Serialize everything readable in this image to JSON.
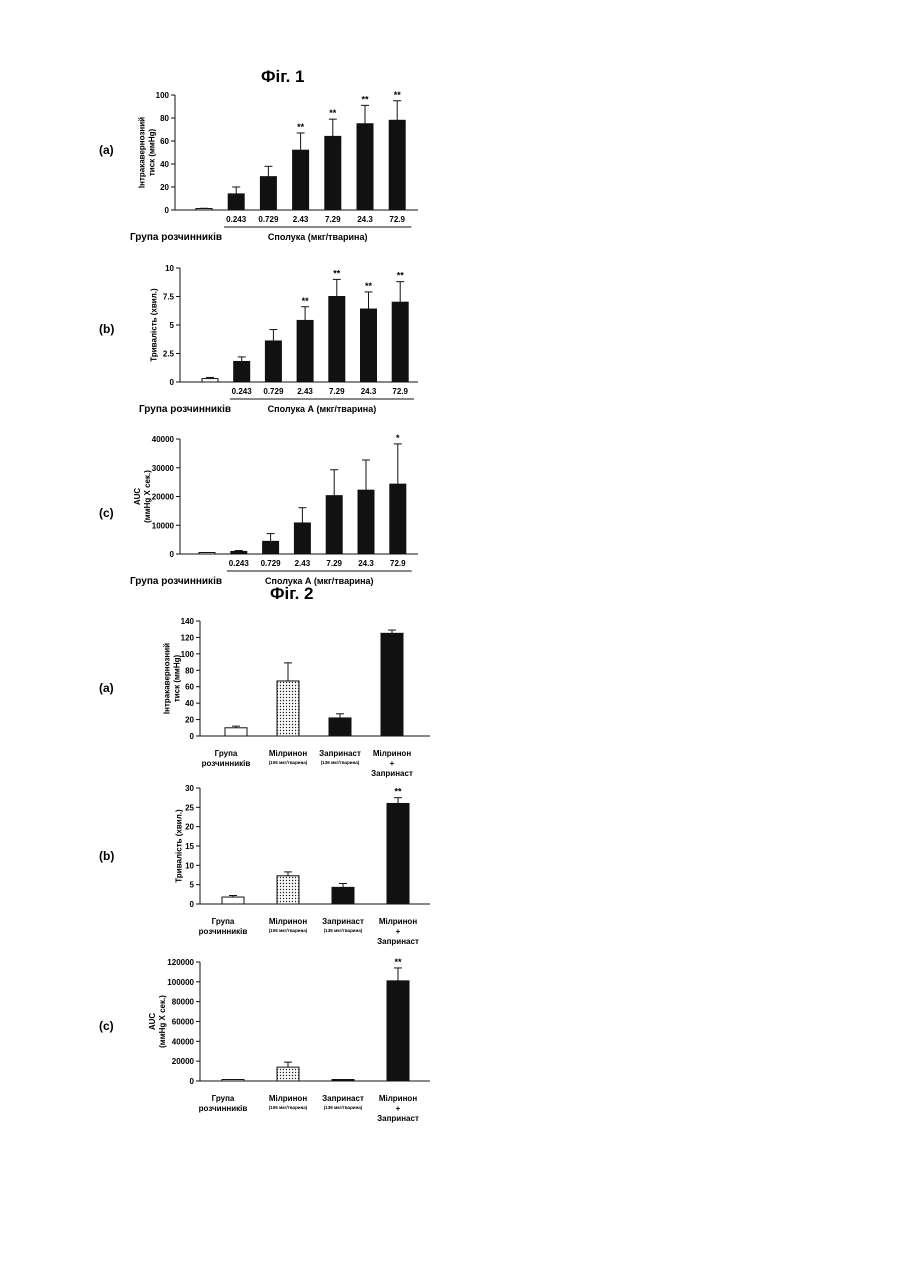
{
  "figures": [
    {
      "title": "Фіг. 1",
      "panels": [
        {
          "letter": "(a)",
          "chart_data": {
            "type": "bar",
            "ylabel": "Інтракавернозний тиск (ммHg)",
            "ylim": [
              0,
              100
            ],
            "yticks": [
              0,
              20,
              40,
              60,
              80,
              100
            ],
            "categories": [
              "",
              "0.243",
              "0.729",
              "2.43",
              "7.29",
              "24.3",
              "72.9"
            ],
            "values": [
              1,
              14,
              29,
              52,
              64,
              75,
              78
            ],
            "errors": [
              0.5,
              6,
              9,
              15,
              15,
              16,
              17
            ],
            "significance": [
              "",
              "",
              "",
              "**",
              "**",
              "**",
              "**"
            ],
            "fills": [
              "white",
              "black",
              "black",
              "black",
              "black",
              "black",
              "black"
            ],
            "group_label": "Група розчинників",
            "compound_label": "Сполука (мкг/тварина)",
            "grid": false
          }
        },
        {
          "letter": "(b)",
          "chart_data": {
            "type": "bar",
            "ylabel": "Тривалість (хвил.)",
            "ylim": [
              0,
              10
            ],
            "yticks": [
              0,
              2.5,
              5,
              7.5,
              10
            ],
            "categories": [
              "",
              "0.243",
              "0.729",
              "2.43",
              "7.29",
              "24.3",
              "72.9"
            ],
            "values": [
              0.3,
              1.8,
              3.6,
              5.4,
              7.5,
              6.4,
              7.0
            ],
            "errors": [
              0.1,
              0.4,
              1.0,
              1.2,
              1.5,
              1.5,
              1.8
            ],
            "significance": [
              "",
              "",
              "",
              "**",
              "**",
              "**",
              "**"
            ],
            "fills": [
              "white",
              "black",
              "black",
              "black",
              "black",
              "black",
              "black"
            ],
            "group_label": "Група розчинників",
            "compound_label": "Сполука А (мкг/тварина)",
            "grid": false
          }
        },
        {
          "letter": "(c)",
          "chart_data": {
            "type": "bar",
            "ylabel": "AUC (ммHg X сек.)",
            "ylim": [
              0,
              40000
            ],
            "yticks": [
              0,
              10000,
              20000,
              30000,
              40000
            ],
            "categories": [
              "",
              "0.243",
              "0.729",
              "2.43",
              "7.29",
              "24.3",
              "72.9"
            ],
            "values": [
              0,
              900,
              4400,
              10800,
              20300,
              22200,
              24300
            ],
            "errors": [
              0,
              300,
              2700,
              5300,
              9000,
              10500,
              14000
            ],
            "significance": [
              "",
              "",
              "",
              "",
              "",
              "",
              "*"
            ],
            "fills": [
              "white",
              "black",
              "black",
              "black",
              "black",
              "black",
              "black"
            ],
            "group_label": "Група розчинників",
            "compound_label": "Сполука А (мкг/тварина)",
            "grid": false
          }
        }
      ]
    },
    {
      "title": "Фіг. 2",
      "panels": [
        {
          "letter": "(a)",
          "chart_data": {
            "type": "bar",
            "ylabel": "Інтракавернозний тиск (ммHg)",
            "ylim": [
              0,
              140
            ],
            "yticks": [
              0,
              20,
              40,
              60,
              80,
              100,
              120,
              140
            ],
            "categories": [
              {
                "lines": [
                  "Група",
                  "розчинників"
                ],
                "sub": ""
              },
              {
                "lines": [
                  "Мілринон"
                ],
                "sub": "(106 мкг/тварина)"
              },
              {
                "lines": [
                  "Запринаст"
                ],
                "sub": "(136 мкг/тварина)"
              },
              {
                "lines": [
                  "Мілринон",
                  "+",
                  "Запринаст"
                ],
                "sub": ""
              }
            ],
            "values": [
              10,
              67,
              22,
              125
            ],
            "errors": [
              2,
              22,
              5,
              4
            ],
            "significance": [
              "",
              "",
              "",
              ""
            ],
            "fills": [
              "white",
              "dotted",
              "black",
              "black"
            ],
            "grid": false
          }
        },
        {
          "letter": "(b)",
          "chart_data": {
            "type": "bar",
            "ylabel": "Тривалість (хвил.)",
            "ylim": [
              0,
              30
            ],
            "yticks": [
              0,
              5,
              10,
              15,
              20,
              25,
              30
            ],
            "categories": [
              {
                "lines": [
                  "Група",
                  "розчинників"
                ],
                "sub": ""
              },
              {
                "lines": [
                  "Мілринон"
                ],
                "sub": "(106 мкг/тварина)"
              },
              {
                "lines": [
                  "Запринаст"
                ],
                "sub": "(136 мкг/тварина)"
              },
              {
                "lines": [
                  "Мілринон",
                  "+",
                  "Запринаст"
                ],
                "sub": ""
              }
            ],
            "values": [
              1.8,
              7.3,
              4.3,
              26
            ],
            "errors": [
              0.4,
              1.0,
              1.0,
              1.5
            ],
            "significance": [
              "",
              "",
              "",
              "**"
            ],
            "fills": [
              "white",
              "dotted",
              "black",
              "black"
            ],
            "grid": false
          }
        },
        {
          "letter": "(c)",
          "chart_data": {
            "type": "bar",
            "ylabel": "AUC (ммHg X сек.)",
            "ylim": [
              0,
              120000
            ],
            "yticks": [
              0,
              20000,
              40000,
              60000,
              80000,
              100000,
              120000
            ],
            "categories": [
              {
                "lines": [
                  "Група",
                  "розчинників"
                ],
                "sub": ""
              },
              {
                "lines": [
                  "Мілринон"
                ],
                "sub": "(106 мкг/тварина)"
              },
              {
                "lines": [
                  "Запринаст"
                ],
                "sub": "(136 мкг/тварина)"
              },
              {
                "lines": [
                  "Мілринон",
                  "+",
                  "Запринаст"
                ],
                "sub": ""
              }
            ],
            "values": [
              0,
              14000,
              1000,
              101000
            ],
            "errors": [
              0,
              5000,
              300,
              13000
            ],
            "significance": [
              "",
              "",
              "",
              "**"
            ],
            "fills": [
              "white",
              "dotted",
              "black",
              "black"
            ],
            "grid": false
          }
        }
      ]
    }
  ]
}
